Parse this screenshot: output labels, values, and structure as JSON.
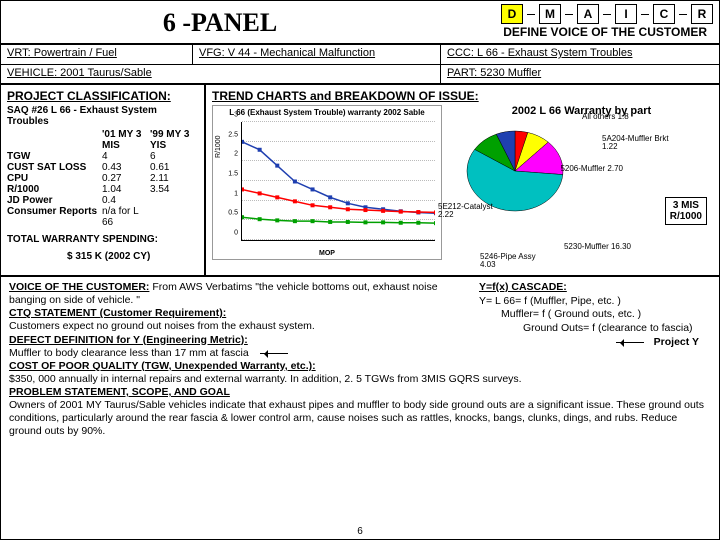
{
  "title": "6 -PANEL",
  "dmaic": {
    "boxes": [
      "D",
      "M",
      "A",
      "I",
      "C",
      "R"
    ],
    "selected": 0,
    "sub": "DEFINE VOICE OF THE CUSTOMER"
  },
  "row2": {
    "vrt": "VRT: Powertrain / Fuel",
    "vfg": "VFG: V 44 - Mechanical Malfunction",
    "ccc": "CCC: L 66 - Exhaust System Troubles"
  },
  "row3": {
    "vehicle": "VEHICLE: 2001 Taurus/Sable",
    "part": "PART: 5230 Muffler"
  },
  "pc": {
    "heading": "PROJECT CLASSIFICATION:",
    "saq": "SAQ #26 L 66 - Exhaust System Troubles",
    "cols": [
      "",
      "'01 MY 3 MIS",
      "'99 MY 3 YIS"
    ],
    "rows": [
      [
        "TGW",
        "4",
        "6"
      ],
      [
        "CUST SAT LOSS",
        "0.43",
        "0.61"
      ],
      [
        "CPU",
        "0.27",
        "2.11"
      ],
      [
        "R/1000",
        "1.04",
        "3.54"
      ],
      [
        "JD Power",
        "0.4",
        ""
      ],
      [
        "Consumer Reports",
        "n/a for L 66",
        ""
      ]
    ],
    "tws1": "TOTAL WARRANTY SPENDING:",
    "tws2": "$ 315 K (2002 CY)"
  },
  "tc": {
    "heading": "TREND CHARTS and BREAKDOWN OF ISSUE:",
    "line": {
      "title": "L 66 (Exhaust System Trouble) warranty 2002 Sable",
      "ylabel": "R/1000",
      "xlabel": "MOP",
      "ylim": [
        0,
        3
      ],
      "ytick_step": 0.5,
      "xvals": [
        1,
        2,
        3,
        4,
        5,
        6,
        7,
        8,
        9,
        10,
        11,
        12
      ],
      "series": [
        {
          "label": "A",
          "color": "#1f3fb0",
          "vals": [
            2.5,
            2.3,
            1.9,
            1.5,
            1.3,
            1.1,
            0.95,
            0.85,
            0.8,
            0.75,
            0.72,
            0.7
          ]
        },
        {
          "label": "B",
          "color": "#ff0000",
          "vals": [
            1.3,
            1.2,
            1.1,
            1.0,
            0.9,
            0.85,
            0.8,
            0.78,
            0.76,
            0.74,
            0.73,
            0.72
          ]
        },
        {
          "label": "C",
          "color": "#00a000",
          "vals": [
            0.6,
            0.55,
            0.52,
            0.5,
            0.5,
            0.48,
            0.48,
            0.47,
            0.47,
            0.46,
            0.46,
            0.45
          ]
        }
      ],
      "grid_color": "#bbbbbb",
      "bg": "#ffffff"
    },
    "pie": {
      "title": "2002 L 66 Warranty by part",
      "slices": [
        {
          "label": "5A204-Muffler Brkt 1.22",
          "value": 1.22,
          "color": "#ff0000"
        },
        {
          "label": "5E212-Catalyst 2.22",
          "value": 2.22,
          "color": "#ffff00"
        },
        {
          "label": "5246-Pipe Assy 4.03",
          "value": 4.03,
          "color": "#ff00ff"
        },
        {
          "label": "5230-Muffler 16.30",
          "value": 16.3,
          "color": "#00c0c0"
        },
        {
          "label": "5206-Muffler 2.70",
          "value": 2.7,
          "color": "#00a000"
        },
        {
          "label": "All others 1.8",
          "value": 1.8,
          "color": "#1f3fb0"
        }
      ],
      "tag1": "3 MIS",
      "tag2": "R/1000"
    }
  },
  "voc": {
    "h1": "VOICE OF THE CUSTOMER:",
    "t1": " From AWS Verbatims \"the vehicle bottoms out, exhaust noise banging on side of vehicle. \"",
    "h2": "CTQ STATEMENT (Customer Requirement):",
    "t2": "Customers expect no ground out noises from the exhaust system.",
    "h3": "DEFECT DEFINITION for Y (Engineering Metric):",
    "t3": "Muffler to body clearance less than 17 mm at fascia",
    "h4": "COST OF POOR QUALITY (TGW, Unexpended Warranty, etc.):",
    "t4": "$350, 000 annually in internal repairs and external warranty. In addition, 2. 5 TGWs from 3MIS GQRS surveys.",
    "h5": "PROBLEM STATEMENT, SCOPE, AND GOAL",
    "t5": "Owners of 2001 MY Taurus/Sable vehicles indicate that exhaust pipes and muffler to body side ground outs are a significant issue. These ground outs conditions, particularly around the rear fascia & lower control arm, cause noises such as rattles, knocks, bangs, clunks, dings, and rubs. Reduce ground outs by 90%.",
    "cascade": {
      "h": "Y=f(x) CASCADE:",
      "l1": "Y= L 66= f (Muffler, Pipe, etc. )",
      "l2": "Muffler= f ( Ground outs, etc. )",
      "l3": "Ground Outs= f (clearance to fascia)",
      "l4": "Project Y"
    }
  },
  "pagenum": "6"
}
